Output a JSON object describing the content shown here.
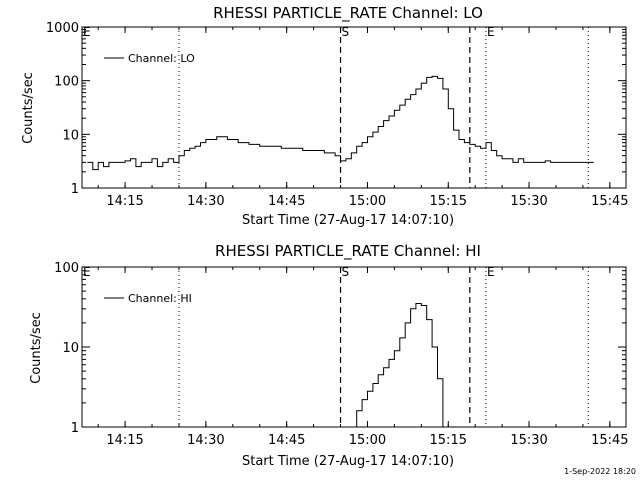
{
  "chart_data": [
    {
      "type": "line",
      "title": "RHESSI PARTICLE_RATE Channel: LO",
      "xlabel": "Start Time (27-Aug-17 14:07:10)",
      "ylabel": "Counts/sec",
      "yscale": "log",
      "ylim": [
        1,
        1000
      ],
      "xlim": [
        "14:07",
        "15:48"
      ],
      "x_ticks": [
        "14:15",
        "14:30",
        "14:45",
        "15:00",
        "15:15",
        "15:30",
        "15:45"
      ],
      "y_ticks": [
        "1",
        "10",
        "100",
        "1000"
      ],
      "grid": false,
      "legend_position": "top-left",
      "series": [
        {
          "name": "Channel: LO",
          "x": [
            "14:08",
            "14:09",
            "14:10",
            "14:11",
            "14:12",
            "14:13",
            "14:14",
            "14:15",
            "14:16",
            "14:17",
            "14:18",
            "14:19",
            "14:20",
            "14:21",
            "14:22",
            "14:23",
            "14:24",
            "14:25",
            "14:26",
            "14:27",
            "14:28",
            "14:29",
            "14:30",
            "14:32",
            "14:34",
            "14:36",
            "14:38",
            "14:40",
            "14:42",
            "14:44",
            "14:46",
            "14:48",
            "14:50",
            "14:52",
            "14:54",
            "14:55",
            "14:56",
            "14:57",
            "14:58",
            "14:59",
            "15:00",
            "15:01",
            "15:02",
            "15:03",
            "15:04",
            "15:05",
            "15:06",
            "15:07",
            "15:08",
            "15:09",
            "15:10",
            "15:11",
            "15:12",
            "15:13",
            "15:14",
            "15:15",
            "15:16",
            "15:17",
            "15:18",
            "15:19",
            "15:20",
            "15:21",
            "15:22",
            "15:23",
            "15:24",
            "15:25",
            "15:26",
            "15:27",
            "15:28",
            "15:29",
            "15:30",
            "15:31",
            "15:32",
            "15:33",
            "15:34",
            "15:36",
            "15:38",
            "15:40",
            "15:42"
          ],
          "y": [
            3,
            2.2,
            3,
            2.5,
            3,
            3,
            3,
            3.2,
            3.5,
            2.5,
            3,
            3,
            3.5,
            2.5,
            3,
            3.5,
            3,
            4,
            5,
            5.5,
            6,
            7,
            8,
            9,
            8,
            7,
            6.5,
            6,
            6,
            5.5,
            5.5,
            5,
            5,
            4.5,
            4,
            3.2,
            3.5,
            4.5,
            6,
            7,
            9,
            11,
            14,
            18,
            22,
            28,
            35,
            45,
            55,
            70,
            90,
            115,
            120,
            110,
            70,
            30,
            12,
            8,
            7,
            6.5,
            6,
            5.5,
            7,
            5,
            4,
            3.5,
            3.5,
            3,
            3.5,
            3,
            3,
            3,
            3,
            3.2,
            3,
            3,
            3,
            3,
            3
          ]
        }
      ],
      "annotations": {
        "markers": [
          "E",
          "S",
          "E"
        ],
        "marker_lines": {
          "dotted": [
            "14:25",
            "15:22",
            "15:41"
          ],
          "dashed": [
            "14:55",
            "15:19"
          ]
        }
      }
    },
    {
      "type": "line",
      "title": "RHESSI PARTICLE_RATE Channel: HI",
      "xlabel": "Start Time (27-Aug-17 14:07:10)",
      "ylabel": "Counts/sec",
      "yscale": "log",
      "ylim": [
        1,
        100
      ],
      "xlim": [
        "14:07",
        "15:48"
      ],
      "x_ticks": [
        "14:15",
        "14:30",
        "14:45",
        "15:00",
        "15:15",
        "15:30",
        "15:45"
      ],
      "y_ticks": [
        "1",
        "10",
        "100"
      ],
      "grid": false,
      "legend_position": "top-left",
      "series": [
        {
          "name": "Channel: HI",
          "x": [
            "14:57",
            "14:58",
            "14:59",
            "15:00",
            "15:01",
            "15:02",
            "15:03",
            "15:04",
            "15:05",
            "15:06",
            "15:07",
            "15:08",
            "15:09",
            "15:10",
            "15:11",
            "15:12",
            "15:13",
            "15:14"
          ],
          "y": [
            1,
            1.6,
            2.2,
            2.8,
            3.5,
            4.5,
            5.5,
            7,
            9,
            13,
            20,
            30,
            35,
            33,
            22,
            10,
            4,
            1
          ]
        }
      ],
      "annotations": {
        "markers": [
          "E",
          "S",
          "E"
        ],
        "marker_lines": {
          "dotted": [
            "14:25",
            "15:22",
            "15:41"
          ],
          "dashed": [
            "14:55",
            "15:19"
          ]
        }
      }
    }
  ],
  "footer": {
    "timestamp": "1-Sep-2022 18:20"
  }
}
